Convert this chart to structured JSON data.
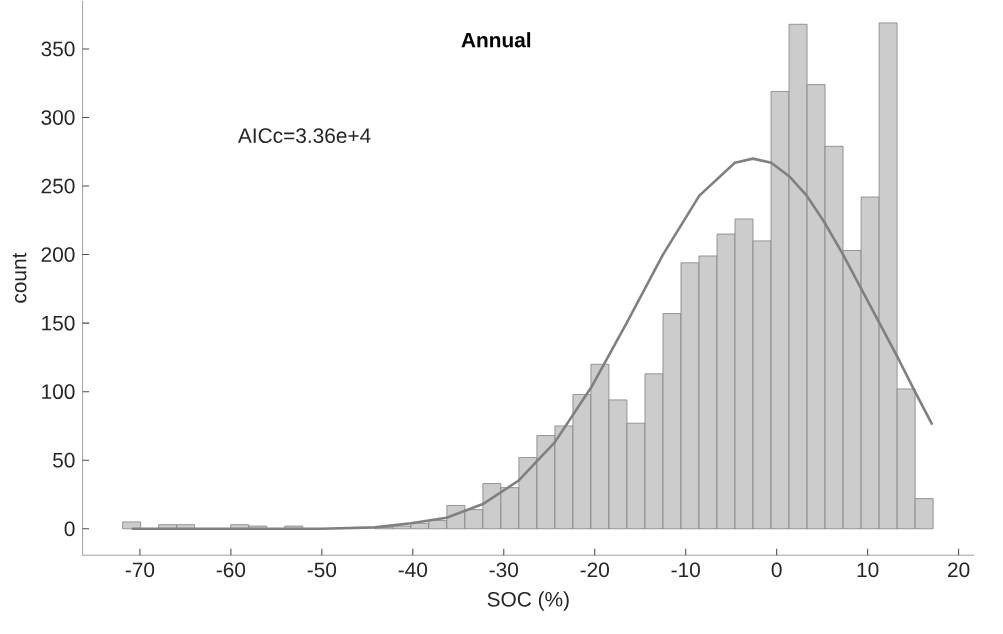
{
  "chart_data": {
    "type": "histogram",
    "title": "Annual",
    "xlabel": "SOC (%)",
    "ylabel": "count",
    "annotations": [
      "AICc=3.36e+4"
    ],
    "bins": [
      -71.9,
      -69.92,
      -67.94,
      -65.96,
      -63.98,
      -62.0,
      -60.02,
      -58.04,
      -56.06,
      -54.08,
      -52.1,
      -50.12,
      -48.14,
      -46.16,
      -44.18,
      -42.2,
      -40.22,
      -38.24,
      -36.26,
      -34.28,
      -32.3,
      -30.32,
      -28.34,
      -26.36,
      -24.38,
      -22.4,
      -20.42,
      -18.44,
      -16.46,
      -14.48,
      -12.5,
      -10.52,
      -8.54,
      -6.56,
      -4.58,
      -2.6,
      -0.62,
      1.36,
      3.34,
      5.32,
      7.3,
      9.28,
      11.26,
      13.24,
      15.22,
      17.2
    ],
    "values": [
      5,
      0,
      3,
      3,
      0,
      0,
      3,
      2,
      0,
      2,
      0,
      null,
      0,
      null,
      1,
      2,
      4,
      6,
      17,
      14,
      33,
      30,
      52,
      68,
      75,
      98,
      120,
      94,
      77,
      113,
      157,
      194,
      199,
      215,
      226,
      210,
      319,
      368,
      324,
      279,
      203,
      242,
      369,
      102,
      22
    ],
    "color": "#cccccc",
    "series": [
      {
        "type": "line",
        "color": "#808080",
        "x": [
          -70.9,
          -60,
          -50,
          -44.2,
          -40.2,
          -36.3,
          -32.3,
          -28.4,
          -24.4,
          -20.4,
          -16.5,
          -12.5,
          -8.5,
          -4.6,
          -2.6,
          -0.6,
          1.4,
          3.3,
          5.3,
          7.3,
          9.3,
          11.3,
          13.3,
          15.2,
          17.1
        ],
        "values": [
          0,
          0,
          0,
          1,
          4,
          8,
          18,
          35,
          63,
          103,
          150,
          200,
          243,
          267,
          270,
          267,
          257,
          243,
          223,
          200,
          175,
          150,
          125,
          100,
          76
        ]
      }
    ],
    "xlim": [
      -76.3,
      21.7
    ],
    "ylim": [
      -19.3,
      385
    ],
    "xticks": [
      -70,
      -60,
      -50,
      -40,
      -30,
      -20,
      -10,
      0,
      10,
      20
    ],
    "yticks": [
      0,
      50,
      100,
      150,
      200,
      250,
      300,
      350
    ],
    "grid": false
  }
}
